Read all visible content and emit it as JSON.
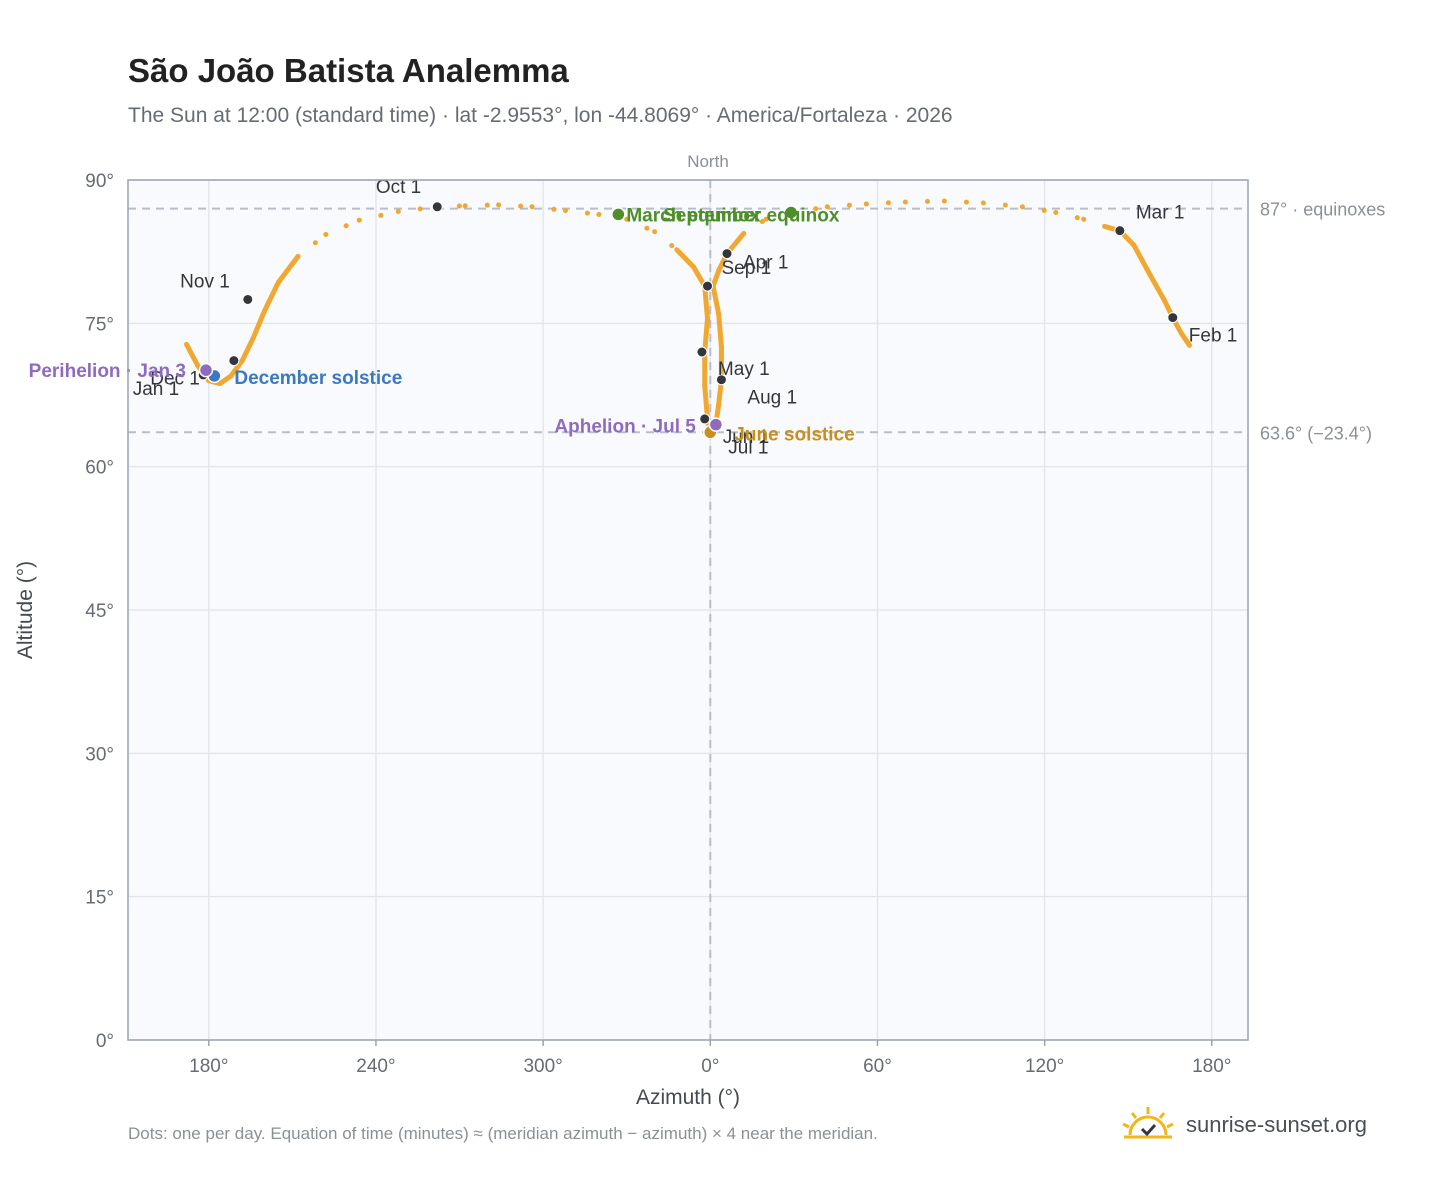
{
  "title": "São João Batista Analemma",
  "subtitle": "The Sun at 12:00 (standard time) · lat -2.9553°, lon -44.8069° · America/Fortaleza · 2026",
  "footnote": "Dots: one per day. Equation of time (minutes) ≈ (meridian azimuth − azimuth) × 4 near the meridian.",
  "brand": {
    "text": "sunrise-sunset.org",
    "icon": "sunrise-check-icon",
    "color": "#f2b51a"
  },
  "chart_data": {
    "type": "scatter",
    "xlabel": "Azimuth (°)",
    "ylabel": "Altitude (°)",
    "top_label": "North",
    "x_ticks": [
      "180°",
      "240°",
      "300°",
      "0°",
      "60°",
      "120°",
      "180°"
    ],
    "x_tick_values": [
      -180,
      -120,
      -60,
      0,
      60,
      120,
      180
    ],
    "xlim": [
      -209,
      193
    ],
    "y_ticks": [
      "0°",
      "15°",
      "30°",
      "45°",
      "60°",
      "75°",
      "90°"
    ],
    "y_tick_values": [
      0,
      15,
      30,
      45,
      60,
      75,
      90
    ],
    "ylim": [
      0,
      90
    ],
    "grid": true,
    "colors": {
      "path": "#f0a830",
      "month_point": "#33363d",
      "equinox": "#4e8f2a",
      "june": "#c8901a",
      "december": "#3a78c2",
      "aphelion_perihelion": "#8e6bbf",
      "ref_line": "#b8bec8"
    },
    "reference_lines": [
      {
        "label": "87° · equinoxes",
        "y": 87.0
      },
      {
        "label": "63.6° (−23.4°)",
        "y": 63.6
      }
    ],
    "meridian_azimuth": 0,
    "analemma_path": [
      [
        -188,
        72.8
      ],
      [
        -184,
        70.6
      ],
      [
        -180,
        69.0
      ],
      [
        -176,
        68.7
      ],
      [
        -172,
        69.5
      ],
      [
        -168,
        71.1
      ],
      [
        -164,
        73.5
      ],
      [
        -160,
        76.3
      ],
      [
        -155,
        79.3
      ],
      [
        -148,
        82.0
      ],
      [
        -138,
        84.3
      ],
      [
        -126,
        85.8
      ],
      [
        -112,
        86.7
      ],
      [
        -98,
        87.2
      ],
      [
        -88,
        87.3
      ],
      [
        -76,
        87.4
      ],
      [
        -64,
        87.2
      ],
      [
        -52,
        86.8
      ],
      [
        -40,
        86.4
      ],
      [
        -30,
        85.9
      ],
      [
        -20,
        84.6
      ],
      [
        -12,
        82.7
      ],
      [
        -6,
        80.9
      ],
      [
        -2,
        78.9
      ],
      [
        -1,
        75.5
      ],
      [
        -2,
        72.0
      ],
      [
        -2,
        68.5
      ],
      [
        -1,
        65.0
      ],
      [
        0,
        63.6
      ],
      [
        1,
        63.8
      ],
      [
        2,
        64.4
      ],
      [
        3,
        66.5
      ],
      [
        4,
        69.1
      ],
      [
        4,
        72.5
      ],
      [
        3,
        76.0
      ],
      [
        1,
        78.9
      ],
      [
        3,
        80.5
      ],
      [
        6,
        82.3
      ],
      [
        12,
        84.4
      ],
      [
        20,
        85.9
      ],
      [
        30,
        86.6
      ],
      [
        42,
        87.2
      ],
      [
        56,
        87.5
      ],
      [
        70,
        87.7
      ],
      [
        84,
        87.8
      ],
      [
        98,
        87.6
      ],
      [
        112,
        87.2
      ],
      [
        124,
        86.6
      ],
      [
        134,
        85.9
      ],
      [
        142,
        85.1
      ],
      [
        147,
        84.7
      ],
      [
        152,
        83.2
      ],
      [
        158,
        80.0
      ],
      [
        163,
        77.4
      ],
      [
        166,
        75.6
      ],
      [
        169,
        74.0
      ],
      [
        172,
        72.7
      ]
    ],
    "month_points": [
      {
        "label": "Jan 1",
        "az": -182,
        "alt": 69.6
      },
      {
        "label": "Feb 1",
        "az": 166,
        "alt": 75.6
      },
      {
        "label": "Mar 1",
        "az": 147,
        "alt": 84.7
      },
      {
        "label": "Apr 1",
        "az": 6,
        "alt": 82.3
      },
      {
        "label": "May 1",
        "az": -3,
        "alt": 72.0
      },
      {
        "label": "Jun 1",
        "az": -2,
        "alt": 65.0
      },
      {
        "label": "Jul 1",
        "az": 0,
        "alt": 63.6
      },
      {
        "label": "Aug 1",
        "az": 4,
        "alt": 69.1
      },
      {
        "label": "Sep 1",
        "az": -1,
        "alt": 78.9
      },
      {
        "label": "Oct 1",
        "az": -98,
        "alt": 87.2
      },
      {
        "label": "Nov 1",
        "az": -166,
        "alt": 77.5
      },
      {
        "label": "Dec 1",
        "az": -171,
        "alt": 71.1
      }
    ],
    "events": [
      {
        "label": "March equinox",
        "az": -33,
        "alt": 86.4,
        "color": "#4e8f2a"
      },
      {
        "label": "September equinox",
        "az": 29,
        "alt": 86.6,
        "color": "#4e8f2a"
      },
      {
        "label": "June solstice",
        "az": 0,
        "alt": 63.6,
        "color": "#c8901a"
      },
      {
        "label": "December solstice",
        "az": -178,
        "alt": 69.5,
        "color": "#3a78c2"
      },
      {
        "label": "Perihelion · Jan 3",
        "az": -181,
        "alt": 70.1,
        "color": "#8e6bbf"
      },
      {
        "label": "Aphelion · Jul 5",
        "az": 2,
        "alt": 64.4,
        "color": "#8e6bbf"
      }
    ]
  }
}
